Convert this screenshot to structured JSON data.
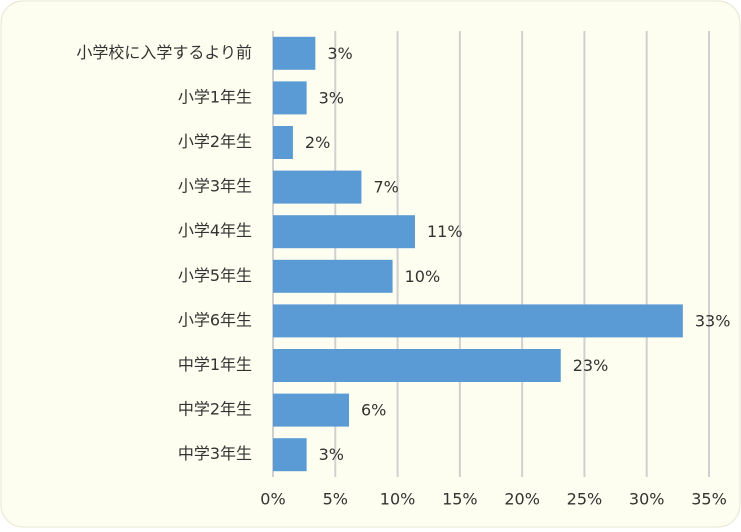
{
  "chart_data": {
    "type": "barh",
    "categories": [
      "小学校に入学するより前",
      "小学1年生",
      "小学2年生",
      "小学3年生",
      "小学4年生",
      "小学5年生",
      "小学6年生",
      "中学1年生",
      "中学2年生",
      "中学3年生"
    ],
    "values": [
      3.4,
      2.7,
      1.6,
      7.1,
      11.4,
      9.6,
      32.9,
      23.1,
      6.1,
      2.7
    ],
    "value_labels": [
      "3%",
      "3%",
      "2%",
      "7%",
      "11%",
      "10%",
      "33%",
      "23%",
      "6%",
      "3%"
    ],
    "color": "#5b9bd5",
    "xlim": [
      0,
      35
    ],
    "xticks": [
      {
        "value": 0,
        "label": "0%"
      },
      {
        "value": 5,
        "label": "5%"
      },
      {
        "value": 10,
        "label": "10%"
      },
      {
        "value": 15,
        "label": "15%"
      },
      {
        "value": 20,
        "label": "20%"
      },
      {
        "value": 25,
        "label": "25%"
      },
      {
        "value": 30,
        "label": "30%"
      },
      {
        "value": 35,
        "label": "35%"
      }
    ],
    "grid": true
  }
}
